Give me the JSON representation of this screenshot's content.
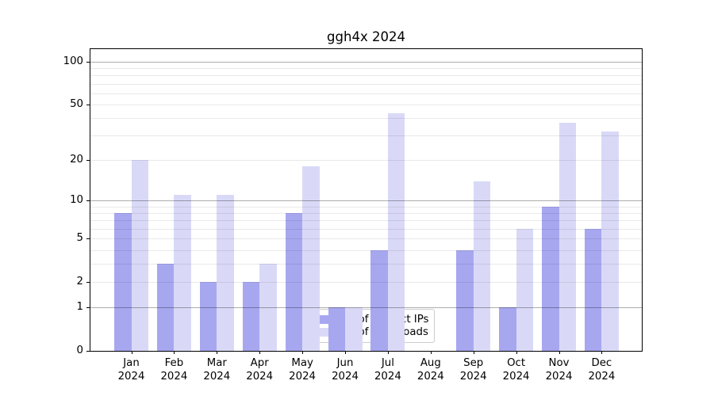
{
  "chart_data": {
    "type": "bar",
    "title": "ggh4x 2024",
    "categories": [
      "Jan 2024",
      "Feb 2024",
      "Mar 2024",
      "Apr 2024",
      "May 2024",
      "Jun 2024",
      "Jul 2024",
      "Aug 2024",
      "Sep 2024",
      "Oct 2024",
      "Nov 2024",
      "Dec 2024"
    ],
    "series": [
      {
        "name": "Nb of distinct IPs",
        "color": "#a7a7f0",
        "values": [
          8,
          3,
          2,
          2,
          8,
          1,
          4,
          0,
          4,
          1,
          9,
          6
        ]
      },
      {
        "name": "Nb of downloads",
        "color": "#d9d9f7",
        "values": [
          20,
          11,
          11,
          3,
          18,
          1,
          43,
          0,
          14,
          6,
          37,
          32
        ]
      }
    ],
    "yscale": "log1p",
    "ylim": [
      0,
      122
    ],
    "yticks": [
      0,
      1,
      2,
      5,
      10,
      20,
      50,
      100
    ],
    "major_gridlines": [
      1,
      10,
      100
    ],
    "minor_gridlines": [
      2,
      3,
      4,
      5,
      6,
      7,
      8,
      9,
      20,
      30,
      40,
      50,
      60,
      70,
      80,
      90
    ],
    "grid": true,
    "legend_position": "lower center",
    "xlabel": "",
    "ylabel": ""
  }
}
